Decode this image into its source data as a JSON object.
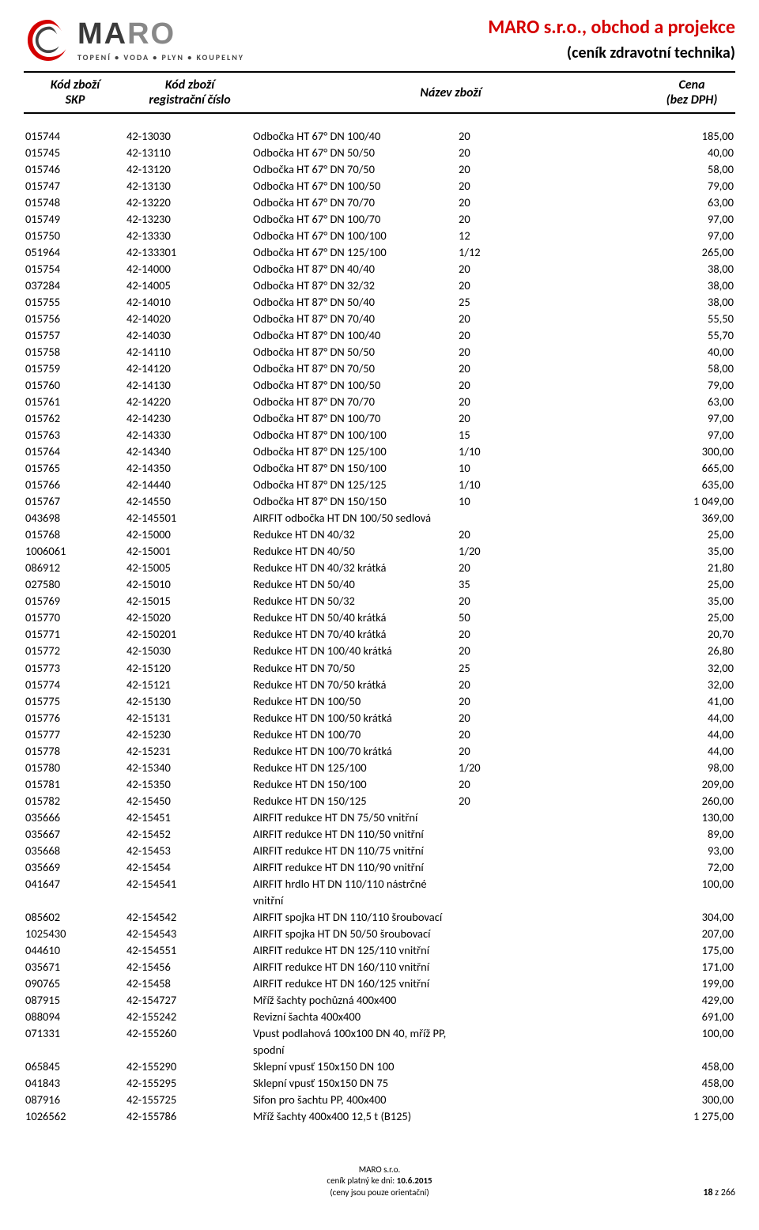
{
  "logo": {
    "word_dark": "MA",
    "word_grey": "RO",
    "tagline": "TOPENÍ • VODA • PLYN • KOUPELNY"
  },
  "header": {
    "company": "MARO s.r.o., obchod a projekce",
    "subtitle": "(ceník zdravotní technika)"
  },
  "columns": {
    "c1a": "Kód zboží",
    "c1b": "SKP",
    "c2a": "Kód zboží",
    "c2b": "registrační číslo",
    "c3": "Název zboží",
    "c4a": "Cena",
    "c4b": "(bez DPH)"
  },
  "rows": [
    {
      "skp": "015744",
      "reg": "42-13030",
      "name": "Odbočka HT  67° DN 100/40",
      "qty": "20",
      "price": "185,00"
    },
    {
      "skp": "015745",
      "reg": "42-13110",
      "name": "Odbočka HT  67° DN 50/50",
      "qty": "20",
      "price": "40,00"
    },
    {
      "skp": "015746",
      "reg": "42-13120",
      "name": "Odbočka HT  67° DN 70/50",
      "qty": "20",
      "price": "58,00"
    },
    {
      "skp": "015747",
      "reg": "42-13130",
      "name": "Odbočka HT  67° DN 100/50",
      "qty": "20",
      "price": "79,00"
    },
    {
      "skp": "015748",
      "reg": "42-13220",
      "name": "Odbočka HT  67° DN 70/70",
      "qty": "20",
      "price": "63,00"
    },
    {
      "skp": "015749",
      "reg": "42-13230",
      "name": "Odbočka HT  67° DN 100/70",
      "qty": "20",
      "price": "97,00"
    },
    {
      "skp": "015750",
      "reg": "42-13330",
      "name": "Odbočka HT  67° DN 100/100",
      "qty": "12",
      "price": "97,00"
    },
    {
      "skp": "051964",
      "reg": "42-133301",
      "name": "Odbočka HT  67° DN 125/100",
      "qty": "1/12",
      "price": "265,00"
    },
    {
      "skp": "015754",
      "reg": "42-14000",
      "name": "Odbočka HT  87° DN 40/40",
      "qty": "20",
      "price": "38,00"
    },
    {
      "skp": "037284",
      "reg": "42-14005",
      "name": "Odbočka HT  87° DN 32/32",
      "qty": "20",
      "price": "38,00"
    },
    {
      "skp": "015755",
      "reg": "42-14010",
      "name": "Odbočka HT  87° DN 50/40",
      "qty": "25",
      "price": "38,00"
    },
    {
      "skp": "015756",
      "reg": "42-14020",
      "name": "Odbočka HT  87° DN 70/40",
      "qty": "20",
      "price": "55,50"
    },
    {
      "skp": "015757",
      "reg": "42-14030",
      "name": "Odbočka HT  87° DN 100/40",
      "qty": "20",
      "price": "55,70"
    },
    {
      "skp": "015758",
      "reg": "42-14110",
      "name": "Odbočka HT  87° DN 50/50",
      "qty": "20",
      "price": "40,00"
    },
    {
      "skp": "015759",
      "reg": "42-14120",
      "name": "Odbočka HT  87° DN 70/50",
      "qty": "20",
      "price": "58,00"
    },
    {
      "skp": "015760",
      "reg": "42-14130",
      "name": "Odbočka HT  87° DN 100/50",
      "qty": "20",
      "price": "79,00"
    },
    {
      "skp": "015761",
      "reg": "42-14220",
      "name": "Odbočka HT  87° DN 70/70",
      "qty": "20",
      "price": "63,00"
    },
    {
      "skp": "015762",
      "reg": "42-14230",
      "name": "Odbočka HT  87° DN 100/70",
      "qty": "20",
      "price": "97,00"
    },
    {
      "skp": "015763",
      "reg": "42-14330",
      "name": "Odbočka HT  87° DN 100/100",
      "qty": "15",
      "price": "97,00"
    },
    {
      "skp": "015764",
      "reg": "42-14340",
      "name": "Odbočka HT  87° DN 125/100",
      "qty": "1/10",
      "price": "300,00"
    },
    {
      "skp": "015765",
      "reg": "42-14350",
      "name": "Odbočka HT  87° DN 150/100",
      "qty": "10",
      "price": "665,00"
    },
    {
      "skp": "015766",
      "reg": "42-14440",
      "name": "Odbočka HT  87° DN 125/125",
      "qty": "1/10",
      "price": "635,00"
    },
    {
      "skp": "015767",
      "reg": "42-14550",
      "name": "Odbočka HT  87° DN 150/150",
      "qty": "10",
      "price": "1 049,00"
    },
    {
      "skp": "043698",
      "reg": "42-145501",
      "name": "AIRFIT odbočka HT  DN 100/50 sedlová",
      "qty": "",
      "price": "369,00"
    },
    {
      "skp": "015768",
      "reg": "42-15000",
      "name": "Redukce HT  DN 40/32",
      "qty": "20",
      "price": "25,00"
    },
    {
      "skp": "1006061",
      "reg": "42-15001",
      "name": "Redukce HT  DN 40/50",
      "qty": "1/20",
      "price": "35,00"
    },
    {
      "skp": "086912",
      "reg": "42-15005",
      "name": "Redukce HT  DN 40/32 krátká",
      "qty": "20",
      "price": "21,80"
    },
    {
      "skp": "027580",
      "reg": "42-15010",
      "name": "Redukce HT  DN 50/40",
      "qty": "35",
      "price": "25,00"
    },
    {
      "skp": "015769",
      "reg": "42-15015",
      "name": "Redukce HT  DN 50/32",
      "qty": "20",
      "price": "35,00"
    },
    {
      "skp": "015770",
      "reg": "42-15020",
      "name": "Redukce HT  DN 50/40 krátká",
      "qty": "50",
      "price": "25,00"
    },
    {
      "skp": "015771",
      "reg": "42-150201",
      "name": "Redukce HT  DN 70/40 krátká",
      "qty": "20",
      "price": "20,70"
    },
    {
      "skp": "015772",
      "reg": "42-15030",
      "name": "Redukce HT  DN 100/40 krátká",
      "qty": "20",
      "price": "26,80"
    },
    {
      "skp": "015773",
      "reg": "42-15120",
      "name": "Redukce HT  DN 70/50",
      "qty": "25",
      "price": "32,00"
    },
    {
      "skp": "015774",
      "reg": "42-15121",
      "name": "Redukce HT  DN 70/50 krátká",
      "qty": "20",
      "price": "32,00"
    },
    {
      "skp": "015775",
      "reg": "42-15130",
      "name": "Redukce HT  DN 100/50",
      "qty": "20",
      "price": "41,00"
    },
    {
      "skp": "015776",
      "reg": "42-15131",
      "name": "Redukce HT  DN 100/50 krátká",
      "qty": "20",
      "price": "44,00"
    },
    {
      "skp": "015777",
      "reg": "42-15230",
      "name": "Redukce HT  DN 100/70",
      "qty": "20",
      "price": "44,00"
    },
    {
      "skp": "015778",
      "reg": "42-15231",
      "name": "Redukce HT  DN 100/70 krátká",
      "qty": "20",
      "price": "44,00"
    },
    {
      "skp": "015780",
      "reg": "42-15340",
      "name": "Redukce HT  DN 125/100",
      "qty": "1/20",
      "price": "98,00"
    },
    {
      "skp": "015781",
      "reg": "42-15350",
      "name": "Redukce HT  DN 150/100",
      "qty": "20",
      "price": "209,00"
    },
    {
      "skp": "015782",
      "reg": "42-15450",
      "name": "Redukce HT  DN 150/125",
      "qty": "20",
      "price": "260,00"
    },
    {
      "skp": "035666",
      "reg": "42-15451",
      "name": "AIRFIT redukce HT  DN 75/50 vnitřní",
      "qty": "",
      "price": "130,00"
    },
    {
      "skp": "035667",
      "reg": "42-15452",
      "name": "AIRFIT redukce HT  DN 110/50 vnitřní",
      "qty": "",
      "price": "89,00"
    },
    {
      "skp": "035668",
      "reg": "42-15453",
      "name": "AIRFIT redukce HT  DN 110/75 vnitřní",
      "qty": "",
      "price": "93,00"
    },
    {
      "skp": "035669",
      "reg": "42-15454",
      "name": "AIRFIT redukce HT  DN 110/90 vnitřní",
      "qty": "",
      "price": "72,00"
    },
    {
      "skp": "041647",
      "reg": "42-154541",
      "name": "AIRFIT hrdlo HT  DN 110/110 nástrčné vnitřní",
      "qty": "",
      "price": "100,00"
    },
    {
      "skp": "085602",
      "reg": "42-154542",
      "name": "AIRFIT spojka HT  DN 110/110 šroubovací",
      "qty": "",
      "price": "304,00"
    },
    {
      "skp": "1025430",
      "reg": "42-154543",
      "name": "AIRFIT spojka HT  DN 50/50 šroubovací",
      "qty": "",
      "price": "207,00"
    },
    {
      "skp": "044610",
      "reg": "42-154551",
      "name": "AIRFIT redukce HT  DN 125/110 vnitřní",
      "qty": "",
      "price": "175,00"
    },
    {
      "skp": "035671",
      "reg": "42-15456",
      "name": "AIRFIT redukce HT  DN 160/110 vnitřní",
      "qty": "",
      "price": "171,00"
    },
    {
      "skp": "090765",
      "reg": "42-15458",
      "name": "AIRFIT redukce HT  DN 160/125 vnitřní",
      "qty": "",
      "price": "199,00"
    },
    {
      "skp": "087915",
      "reg": "42-154727",
      "name": "Mříž šachty pochůzná 400x400",
      "qty": "",
      "price": "429,00"
    },
    {
      "skp": "088094",
      "reg": "42-155242",
      "name": "Revizní šachta  400x400",
      "qty": "",
      "price": "691,00"
    },
    {
      "skp": "071331",
      "reg": "42-155260",
      "name": "Vpust podlahová  100x100 DN 40, mříž PP, spodní",
      "qty": "",
      "price": "100,00"
    },
    {
      "skp": "065845",
      "reg": "42-155290",
      "name": "Sklepní vpusť 150x150  DN 100",
      "qty": "",
      "price": "458,00"
    },
    {
      "skp": "041843",
      "reg": "42-155295",
      "name": "Sklepní vpusť 150x150 DN 75",
      "qty": "",
      "price": "458,00"
    },
    {
      "skp": "087916",
      "reg": "42-155725",
      "name": "Sifon pro šachtu PP, 400x400",
      "qty": "",
      "price": "300,00"
    },
    {
      "skp": "1026562",
      "reg": "42-155786",
      "name": "Mříž šachty 400x400 12,5 t (B125)",
      "qty": "",
      "price": "1 275,00"
    }
  ],
  "footer": {
    "l1": "MARO s.r.o.",
    "l2_pre": "ceník platný ke dni: ",
    "l2_date": "10.6.2015",
    "l3": "(ceny jsou pouze orientační)",
    "page": "18",
    "page_sep": " z ",
    "page_total": "266"
  }
}
